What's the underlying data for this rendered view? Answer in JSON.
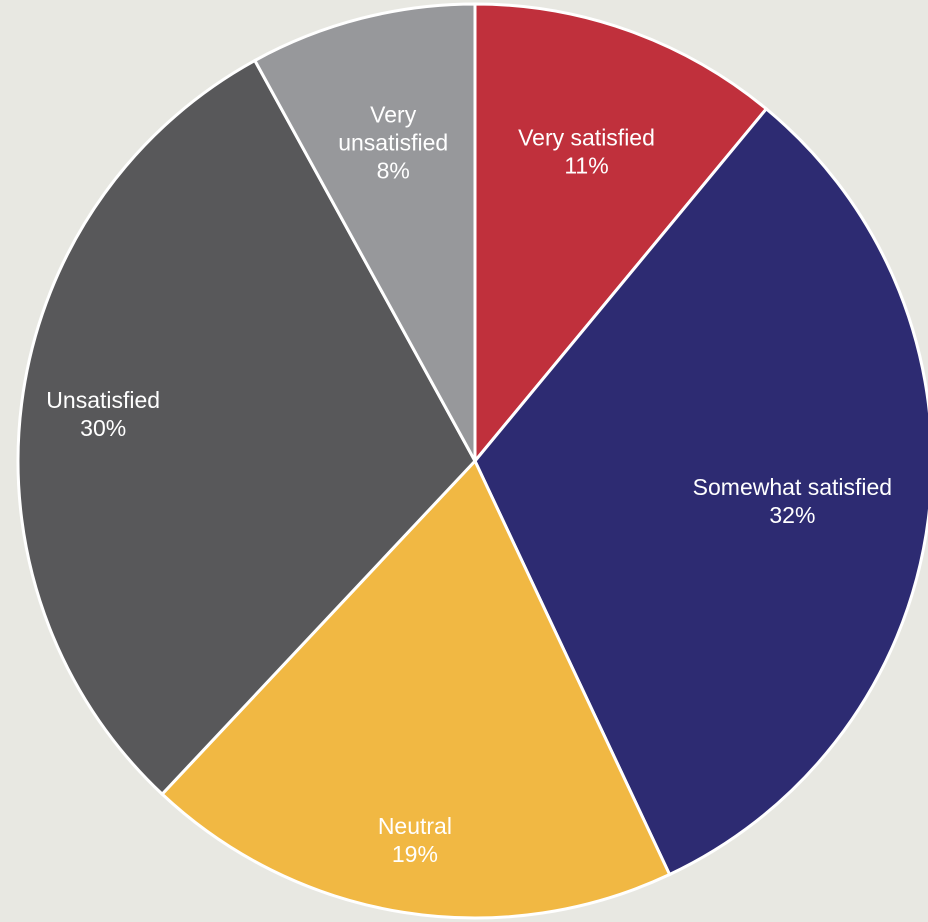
{
  "chart_data": {
    "type": "pie",
    "title": "",
    "start_angle_deg": 0,
    "direction": "clockwise",
    "slices": [
      {
        "label_lines": [
          "Very satisfied"
        ],
        "value_label": "11%",
        "value": 11,
        "color": "#c0303c",
        "label_color": "#ffffff"
      },
      {
        "label_lines": [
          "Somewhat satisfied"
        ],
        "value_label": "32%",
        "value": 32,
        "color": "#2d2b72",
        "label_color": "#ffffff"
      },
      {
        "label_lines": [
          "Neutral"
        ],
        "value_label": "19%",
        "value": 19,
        "color": "#f1b843",
        "label_color": "#ffffff"
      },
      {
        "label_lines": [
          "Unsatisfied"
        ],
        "value_label": "30%",
        "value": 30,
        "color": "#58585a",
        "label_color": "#ffffff"
      },
      {
        "label_lines": [
          "Very",
          "unsatisfied"
        ],
        "value_label": "8%",
        "value": 8,
        "color": "#97989b",
        "label_color": "#ffffff"
      }
    ]
  }
}
